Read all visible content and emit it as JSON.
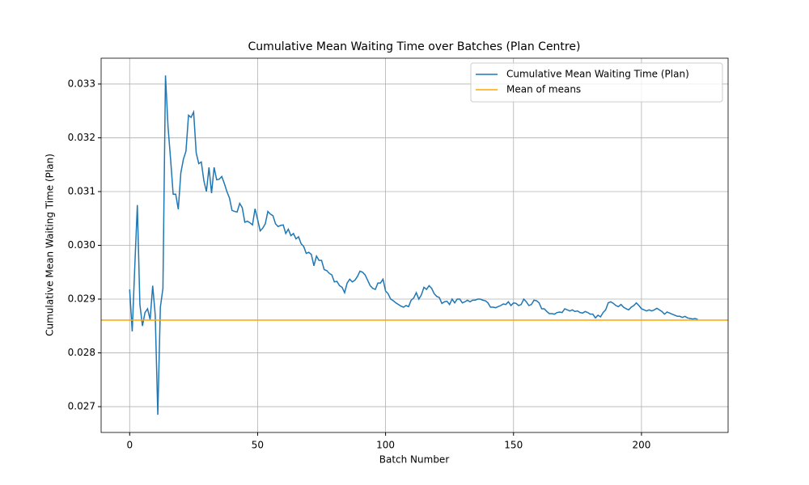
{
  "chart_data": {
    "type": "line",
    "title": "Cumulative Mean Waiting Time over Batches (Plan Centre)",
    "xlabel": "Batch Number",
    "ylabel": "Cumulative Mean Waiting Time (Plan)",
    "xlim": [
      -11.15,
      233.85
    ],
    "ylim": [
      0.02652,
      0.03348
    ],
    "xticks": [
      0,
      50,
      100,
      150,
      200
    ],
    "yticks": [
      0.027,
      0.028,
      0.029,
      {
        "value": 0.03,
        "label": "0.030"
      },
      0.031,
      0.032,
      0.033
    ],
    "grid": true,
    "legend": "upper right",
    "x": [
      0,
      1,
      2,
      3,
      4,
      5,
      6,
      7,
      8,
      9,
      10,
      11,
      12,
      13,
      14,
      15,
      16,
      17,
      18,
      19,
      20,
      21,
      22,
      23,
      24,
      25,
      26,
      27,
      28,
      29,
      30,
      31,
      32,
      33,
      34,
      35,
      36,
      37,
      38,
      39,
      40,
      41,
      42,
      43,
      44,
      45,
      46,
      47,
      48,
      49,
      50,
      51,
      52,
      53,
      54,
      55,
      56,
      57,
      58,
      59,
      60,
      61,
      62,
      63,
      64,
      65,
      66,
      67,
      68,
      69,
      70,
      71,
      72,
      73,
      74,
      75,
      76,
      77,
      78,
      79,
      80,
      81,
      82,
      83,
      84,
      85,
      86,
      87,
      88,
      89,
      90,
      91,
      92,
      93,
      94,
      95,
      96,
      97,
      98,
      99,
      100,
      101,
      102,
      103,
      104,
      105,
      106,
      107,
      108,
      109,
      110,
      111,
      112,
      113,
      114,
      115,
      116,
      117,
      118,
      119,
      120,
      121,
      122,
      123,
      124,
      125,
      126,
      127,
      128,
      129,
      130,
      131,
      132,
      133,
      134,
      135,
      136,
      137,
      138,
      139,
      140,
      141,
      142,
      143,
      144,
      145,
      146,
      147,
      148,
      149,
      150,
      151,
      152,
      153,
      154,
      155,
      156,
      157,
      158,
      159,
      160,
      161,
      162,
      163,
      164,
      165,
      166,
      167,
      168,
      169,
      170,
      171,
      172,
      173,
      174,
      175,
      176,
      177,
      178,
      179,
      180,
      181,
      182,
      183,
      184,
      185,
      186,
      187,
      188,
      189,
      190,
      191,
      192,
      193,
      194,
      195,
      196,
      197,
      198,
      199,
      200,
      201,
      202,
      203,
      204,
      205,
      206,
      207,
      208,
      209,
      210,
      211,
      212,
      213,
      214,
      215,
      216,
      217,
      218,
      219,
      220,
      221,
      222
    ],
    "series": [
      {
        "name": "Cumulative Mean Waiting Time (Plan)",
        "color": "#1f77b4",
        "values": [
          0.02918,
          0.0284,
          0.0296,
          0.03075,
          0.0289,
          0.0285,
          0.02875,
          0.02882,
          0.02862,
          0.02925,
          0.0287,
          0.02685,
          0.02885,
          0.0292,
          0.03316,
          0.0322,
          0.0316,
          0.03095,
          0.03095,
          0.03067,
          0.03135,
          0.0316,
          0.03175,
          0.03242,
          0.03238,
          0.03248,
          0.03172,
          0.03152,
          0.03155,
          0.0312,
          0.031,
          0.03145,
          0.03097,
          0.03145,
          0.03122,
          0.03123,
          0.03128,
          0.03115,
          0.031,
          0.03088,
          0.03065,
          0.03063,
          0.03062,
          0.03078,
          0.0307,
          0.03043,
          0.03045,
          0.03042,
          0.03038,
          0.03068,
          0.03048,
          0.03027,
          0.03032,
          0.0304,
          0.03063,
          0.03058,
          0.03055,
          0.0304,
          0.03035,
          0.03037,
          0.03038,
          0.03022,
          0.0303,
          0.03018,
          0.03022,
          0.03012,
          0.03016,
          0.03003,
          0.02998,
          0.02985,
          0.02987,
          0.02983,
          0.02962,
          0.0298,
          0.02972,
          0.02972,
          0.02955,
          0.02953,
          0.02948,
          0.02945,
          0.02932,
          0.02933,
          0.02925,
          0.02922,
          0.02912,
          0.0293,
          0.02937,
          0.02932,
          0.02935,
          0.02942,
          0.02952,
          0.0295,
          0.02945,
          0.02935,
          0.02925,
          0.0292,
          0.02918,
          0.0293,
          0.0293,
          0.02937,
          0.02915,
          0.0291,
          0.029,
          0.02897,
          0.02893,
          0.0289,
          0.02887,
          0.02885,
          0.02888,
          0.02886,
          0.02898,
          0.02902,
          0.02912,
          0.029,
          0.02908,
          0.02922,
          0.02918,
          0.02925,
          0.0292,
          0.0291,
          0.02905,
          0.02903,
          0.02892,
          0.02895,
          0.02896,
          0.0289,
          0.029,
          0.02893,
          0.029,
          0.029,
          0.02893,
          0.02895,
          0.02898,
          0.02895,
          0.02898,
          0.02898,
          0.029,
          0.029,
          0.02898,
          0.02897,
          0.02893,
          0.02885,
          0.02885,
          0.02884,
          0.02886,
          0.02888,
          0.02891,
          0.0289,
          0.02895,
          0.02888,
          0.02893,
          0.02892,
          0.02888,
          0.0289,
          0.029,
          0.02895,
          0.02888,
          0.0289,
          0.02898,
          0.02897,
          0.02893,
          0.02882,
          0.02882,
          0.02877,
          0.02873,
          0.02873,
          0.02872,
          0.02875,
          0.02876,
          0.02875,
          0.02882,
          0.0288,
          0.02878,
          0.0288,
          0.02877,
          0.02878,
          0.02875,
          0.02874,
          0.02877,
          0.02875,
          0.02872,
          0.02872,
          0.02865,
          0.0287,
          0.02867,
          0.02875,
          0.0288,
          0.02893,
          0.02895,
          0.02892,
          0.02888,
          0.02886,
          0.0289,
          0.02885,
          0.02882,
          0.0288,
          0.02885,
          0.02888,
          0.02893,
          0.02888,
          0.02882,
          0.0288,
          0.02878,
          0.0288,
          0.02878,
          0.0288,
          0.02883,
          0.0288,
          0.02877,
          0.02872,
          0.02876,
          0.02874,
          0.02872,
          0.0287,
          0.02868,
          0.02868,
          0.02866,
          0.02868,
          0.02865,
          0.02864,
          0.02863,
          0.02864,
          0.02862
        ]
      }
    ],
    "reference_lines": [
      {
        "name": "Mean of means",
        "color": "orange",
        "value": 0.02861
      }
    ]
  }
}
